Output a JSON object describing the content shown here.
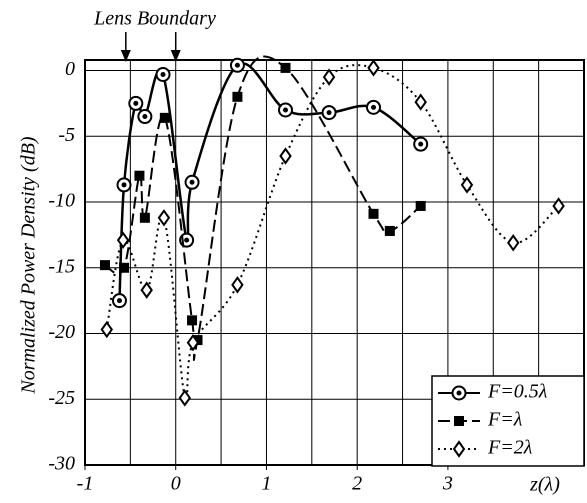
{
  "chart_data": {
    "type": "line",
    "annotation": "Lens Boundary",
    "annotation_x": [
      -0.55,
      0
    ],
    "ylabel": "Normalized Power Density (dB)",
    "xlabel": "z(λ)",
    "xlim": [
      -1,
      4.5
    ],
    "ylim": [
      -30,
      0.8
    ],
    "xticks": [
      -1,
      0,
      1,
      2,
      3
    ],
    "xgrid": [
      -0.5,
      0,
      0.5,
      1,
      1.5,
      2,
      2.5,
      3,
      3.5,
      4
    ],
    "yticks": [
      0,
      -5,
      -10,
      -15,
      -20,
      -25,
      -30
    ],
    "grid": true,
    "legend": "lower right",
    "series": [
      {
        "name": "F=0.5λ",
        "color": "#000000",
        "dash": "solid",
        "marker": "circle",
        "x": [
          -0.62,
          -0.57,
          -0.44,
          -0.34,
          -0.14,
          0.12,
          0.18,
          0.68,
          1.21,
          1.69,
          2.18,
          2.7
        ],
        "values": [
          -17.5,
          -8.7,
          -2.5,
          -3.5,
          -0.3,
          -12.9,
          -8.5,
          0.4,
          -3.0,
          -3.2,
          -2.8,
          -5.6
        ]
      },
      {
        "name": "F=λ",
        "color": "#000000",
        "dash": "dashed",
        "marker": "square",
        "x": [
          -0.78,
          -0.57,
          -0.4,
          -0.34,
          -0.12,
          0.18,
          0.24,
          0.68,
          1.21,
          2.18,
          2.36,
          2.7
        ],
        "values": [
          -14.8,
          -15.0,
          -8.0,
          -11.2,
          -3.6,
          -19.0,
          -20.5,
          -2.0,
          0.2,
          -10.9,
          -12.2,
          -10.3
        ]
      },
      {
        "name": "F=2λ",
        "color": "#000000",
        "dash": "dotted",
        "marker": "diamond",
        "x": [
          -0.76,
          -0.58,
          -0.32,
          -0.13,
          0.1,
          0.19,
          0.68,
          1.21,
          1.69,
          2.18,
          2.7,
          3.21,
          3.72,
          4.22
        ],
        "values": [
          -19.7,
          -12.9,
          -16.7,
          -11.2,
          -24.9,
          -20.7,
          -16.3,
          -6.5,
          -0.5,
          0.2,
          -2.4,
          -8.7,
          -13.1,
          -10.3
        ]
      }
    ]
  }
}
